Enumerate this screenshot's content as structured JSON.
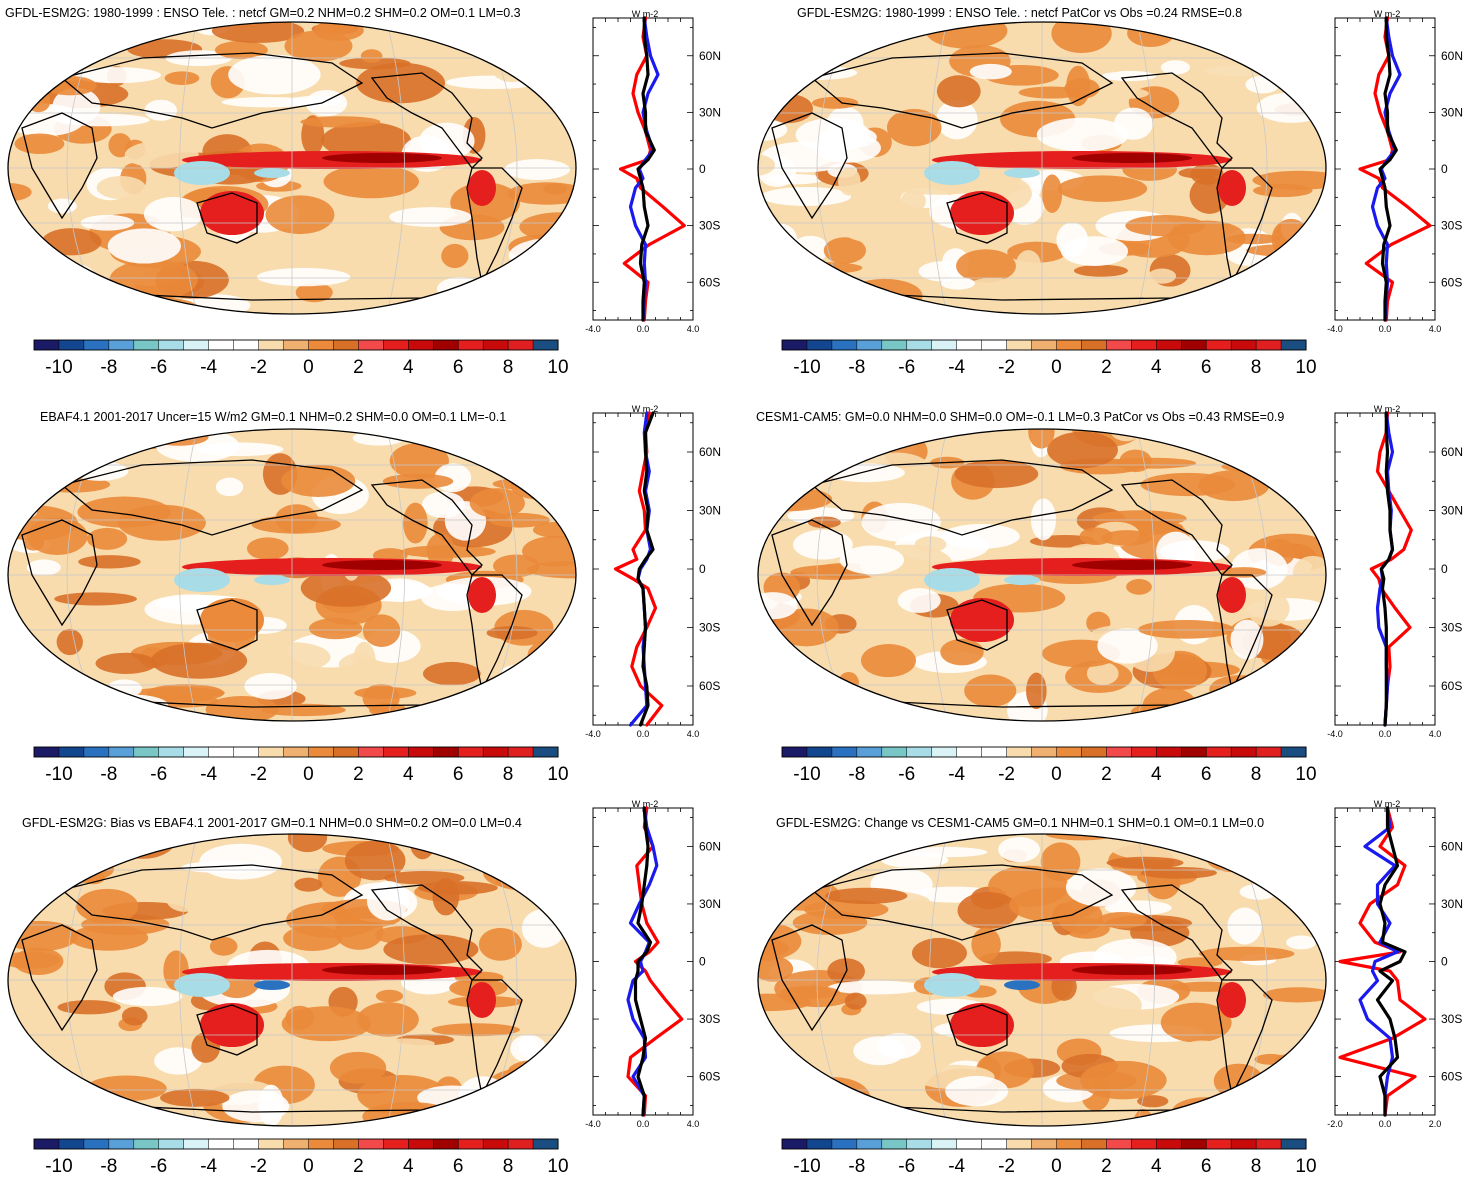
{
  "colorbar": {
    "labels": [
      "-10",
      "-8",
      "-6",
      "-4",
      "-2",
      "0",
      "2",
      "4",
      "6",
      "8",
      "10"
    ],
    "colors": [
      "#1a1a66",
      "#12468f",
      "#2a72c0",
      "#5aa0d8",
      "#78c6c6",
      "#a8dce6",
      "#d8f2f6",
      "#ffffff",
      "#ffffff",
      "#f8dcae",
      "#f0b070",
      "#ea8a3a",
      "#d87028",
      "#f24a4a",
      "#e51e1e",
      "#c80a0a",
      "#a00000",
      "#e51e1e",
      "#c80a0a",
      "#e02020",
      "#1a4d80"
    ]
  },
  "palette": {
    "ocean_bg": "#ffffff",
    "light_orange": "#f8dcae",
    "orange": "#ea8a3a",
    "dark_orange": "#d87028",
    "red": "#e51e1e",
    "dark_red": "#a00000",
    "light_blue": "#a8dce6",
    "blue": "#2a72c0",
    "profile_red": "#ff0000",
    "profile_blue": "#1a1aee",
    "profile_black": "#000000"
  },
  "profile_axis": {
    "unit": "W m-2",
    "lat_ticks": [
      "60N",
      "30N",
      "0",
      "30S",
      "60S"
    ]
  },
  "panels": [
    {
      "title": "GFDL-ESM2G: 1980-1999 : ENSO Tele. : netcf GM=0.2 NHM=0.2 SHM=0.2 OM=0.1 LM=0.3",
      "x_ticks": [
        "-4.0",
        "0.0",
        "4.0"
      ]
    },
    {
      "title": "GFDL-ESM2G: 1980-1999 : ENSO Tele. : netcf PatCor vs Obs =0.24 RMSE=0.8",
      "x_ticks": [
        "-4.0",
        "0.0",
        "4.0"
      ]
    },
    {
      "title": "EBAF4.1 2001-2017 Uncer=15 W/m2 GM=0.1 NHM=0.2 SHM=0.0 OM=0.1 LM=-0.1",
      "x_ticks": [
        "-4.0",
        "0.0",
        "4.0"
      ]
    },
    {
      "title": "CESM1-CAM5: GM=0.0 NHM=0.0 SHM=0.0 OM=-0.1 LM=0.3 PatCor vs Obs =0.43 RMSE=0.9",
      "x_ticks": [
        "-4.0",
        "0.0",
        "4.0"
      ]
    },
    {
      "title": "GFDL-ESM2G: Bias vs EBAF4.1 2001-2017 GM=0.1 NHM=0.0 SHM=0.2 OM=0.0 LM=0.4",
      "x_ticks": [
        "-4.0",
        "0.0",
        "4.0"
      ]
    },
    {
      "title": "GFDL-ESM2G: Change vs CESM1-CAM5 GM=0.1 NHM=0.1 SHM=0.1 OM=0.1 LM=0.0",
      "x_ticks": [
        "-2.0",
        "0.0",
        "2.0"
      ]
    }
  ],
  "chart_data": [
    {
      "type": "heatmap",
      "title": "GFDL-ESM2G: 1980-1999 : ENSO Tele. : netcf GM=0.2 NHM=0.2 SHM=0.2 OM=0.1 LM=0.3",
      "colorbar_range": [
        -10,
        10
      ],
      "profile": {
        "type": "line",
        "x_range": [
          -4,
          4
        ],
        "lat_ticks": [
          "60N",
          "30N",
          "0",
          "30S",
          "60S"
        ],
        "lat": [
          80,
          70,
          60,
          50,
          40,
          30,
          20,
          10,
          5,
          0,
          -5,
          -10,
          -20,
          -30,
          -40,
          -50,
          -60,
          -70,
          -80
        ],
        "series": [
          {
            "values": [
              0.2,
              0.0,
              0.3,
              -0.5,
              -0.8,
              -0.4,
              0.2,
              0.6,
              0.4,
              -1.8,
              -0.5,
              -0.2,
              1.6,
              3.3,
              0.5,
              -1.5,
              0.4,
              0.2,
              0.1
            ]
          },
          {
            "values": [
              0.1,
              0.3,
              0.6,
              1.2,
              0.4,
              0.0,
              0.3,
              0.8,
              0.2,
              -0.3,
              0.0,
              -0.6,
              -1.0,
              -0.6,
              0.2,
              0.1,
              0.2,
              0.1,
              0.0
            ]
          },
          {
            "values": [
              0.1,
              0.1,
              0.3,
              0.4,
              0.0,
              0.2,
              0.2,
              0.9,
              0.4,
              -0.4,
              -0.2,
              0.0,
              0.1,
              0.4,
              -0.1,
              -0.2,
              0.1,
              0.0,
              0.0
            ]
          }
        ]
      }
    },
    {
      "type": "heatmap",
      "title": "GFDL-ESM2G: 1980-1999 : ENSO Tele. : netcf PatCor vs Obs =0.24 RMSE=0.8",
      "colorbar_range": [
        -10,
        10
      ],
      "profile": {
        "type": "line",
        "x_range": [
          -4,
          4
        ],
        "lat_ticks": [
          "60N",
          "30N",
          "0",
          "30S",
          "60S"
        ],
        "lat": [
          80,
          70,
          60,
          50,
          40,
          30,
          20,
          10,
          5,
          0,
          -5,
          -10,
          -20,
          -30,
          -40,
          -50,
          -60,
          -70,
          -80
        ],
        "series": [
          {
            "values": [
              0.2,
              0.0,
              0.3,
              -0.5,
              -0.8,
              -0.4,
              0.2,
              0.6,
              0.4,
              -2.0,
              -0.5,
              -0.2,
              1.8,
              3.6,
              0.5,
              -1.5,
              0.6,
              0.2,
              0.1
            ]
          },
          {
            "values": [
              0.1,
              0.3,
              0.6,
              1.2,
              0.4,
              0.0,
              0.3,
              0.8,
              0.2,
              -0.3,
              0.0,
              -0.6,
              -1.0,
              -0.6,
              0.2,
              0.1,
              0.2,
              0.1,
              0.0
            ]
          },
          {
            "values": [
              0.1,
              0.1,
              0.3,
              0.4,
              0.0,
              0.2,
              0.2,
              0.9,
              0.4,
              -0.4,
              -0.2,
              0.0,
              0.1,
              0.4,
              -0.1,
              -0.2,
              0.1,
              0.0,
              0.0
            ]
          }
        ]
      }
    },
    {
      "type": "heatmap",
      "title": "EBAF4.1 2001-2017 Uncer=15 W/m2 GM=0.1 NHM=0.2 SHM=0.0 OM=0.1 LM=-0.1",
      "colorbar_range": [
        -10,
        10
      ],
      "profile": {
        "type": "line",
        "x_range": [
          -4,
          4
        ],
        "lat_ticks": [
          "60N",
          "30N",
          "0",
          "30S",
          "60S"
        ],
        "lat": [
          80,
          70,
          60,
          50,
          40,
          30,
          20,
          10,
          5,
          0,
          -5,
          -10,
          -20,
          -30,
          -40,
          -50,
          -60,
          -70,
          -80
        ],
        "series": [
          {
            "values": [
              0.5,
              0.2,
              0.3,
              0.0,
              -0.3,
              0.1,
              0.2,
              -0.8,
              -0.5,
              -2.2,
              -0.8,
              0.4,
              1.0,
              0.3,
              -0.5,
              -0.9,
              -0.2,
              1.5,
              0.3
            ]
          },
          {
            "values": [
              0.3,
              0.1,
              0.2,
              0.5,
              0.2,
              0.5,
              0.3,
              0.6,
              0.3,
              -0.2,
              -0.4,
              0.0,
              0.1,
              0.2,
              0.0,
              0.1,
              0.2,
              0.3,
              -1.0
            ]
          },
          {
            "values": [
              0.8,
              0.2,
              0.2,
              0.3,
              0.1,
              0.4,
              0.3,
              0.8,
              0.2,
              -0.3,
              -0.4,
              0.0,
              0.1,
              0.2,
              0.1,
              0.0,
              0.3,
              0.4,
              -0.2
            ]
          }
        ]
      }
    },
    {
      "type": "heatmap",
      "title": "CESM1-CAM5: GM=0.0 NHM=0.0 SHM=0.0 OM=-0.1 LM=0.3 PatCor vs Obs =0.43 RMSE=0.9",
      "colorbar_range": [
        -10,
        10
      ],
      "profile": {
        "type": "line",
        "x_range": [
          -4,
          4
        ],
        "lat_ticks": [
          "60N",
          "30N",
          "0",
          "30S",
          "60S"
        ],
        "lat": [
          80,
          70,
          60,
          50,
          40,
          30,
          20,
          10,
          5,
          0,
          -5,
          -10,
          -20,
          -30,
          -40,
          -50,
          -60,
          -70,
          -80
        ],
        "series": [
          {
            "values": [
              0.2,
              0.1,
              -0.4,
              -0.6,
              0.3,
              1.2,
              2.1,
              1.5,
              0.5,
              -1.1,
              -0.5,
              -0.3,
              0.8,
              2.0,
              0.3,
              0.4,
              0.2,
              0.1,
              0.0
            ]
          },
          {
            "values": [
              0.1,
              0.3,
              0.6,
              0.2,
              0.3,
              0.5,
              0.4,
              0.6,
              0.3,
              -0.3,
              -0.2,
              -0.4,
              -0.6,
              -0.5,
              0.1,
              0.1,
              0.2,
              0.1,
              0.0
            ]
          },
          {
            "values": [
              0.1,
              0.1,
              0.2,
              0.1,
              0.2,
              0.4,
              0.4,
              0.6,
              0.3,
              -0.3,
              -0.1,
              -0.2,
              0.0,
              0.1,
              0.1,
              0.1,
              0.1,
              0.1,
              0.0
            ]
          }
        ]
      }
    },
    {
      "type": "heatmap",
      "title": "GFDL-ESM2G: Bias vs EBAF4.1 2001-2017 GM=0.1 NHM=0.0 SHM=0.2 OM=0.0 LM=0.4",
      "colorbar_range": [
        -10,
        10
      ],
      "profile": {
        "type": "line",
        "x_range": [
          -4,
          4
        ],
        "lat_ticks": [
          "60N",
          "30N",
          "0",
          "30S",
          "60S"
        ],
        "lat": [
          80,
          70,
          60,
          50,
          40,
          30,
          20,
          10,
          5,
          0,
          -5,
          -10,
          -20,
          -30,
          -40,
          -50,
          -60,
          -70,
          -80
        ],
        "series": [
          {
            "values": [
              0.3,
              0.1,
              0.8,
              -0.5,
              -0.3,
              -0.1,
              0.3,
              1.2,
              0.5,
              -0.6,
              0.2,
              0.6,
              1.8,
              3.1,
              1.0,
              -1.0,
              -1.2,
              0.2,
              0.1
            ]
          },
          {
            "values": [
              0.1,
              0.3,
              0.8,
              1.1,
              0.5,
              -0.3,
              -1.0,
              0.5,
              0.2,
              -0.2,
              0.0,
              -0.8,
              -1.2,
              -0.8,
              0.1,
              0.2,
              -0.8,
              0.1,
              0.0
            ]
          },
          {
            "values": [
              0.1,
              0.2,
              0.4,
              0.3,
              0.1,
              -0.1,
              -0.4,
              0.6,
              0.3,
              -0.4,
              -0.4,
              -0.6,
              -0.6,
              -0.2,
              0.2,
              0.0,
              -0.4,
              0.1,
              0.0
            ]
          }
        ]
      }
    },
    {
      "type": "heatmap",
      "title": "GFDL-ESM2G: Change vs CESM1-CAM5 GM=0.1 NHM=0.1 SHM=0.1 OM=0.1 LM=0.0",
      "colorbar_range": [
        -10,
        10
      ],
      "profile": {
        "type": "line",
        "x_range": [
          -2,
          2
        ],
        "lat_ticks": [
          "60N",
          "30N",
          "0",
          "30S",
          "60S"
        ],
        "lat": [
          80,
          70,
          60,
          50,
          40,
          30,
          20,
          10,
          5,
          0,
          -5,
          -10,
          -20,
          -30,
          -40,
          -50,
          -60,
          -70,
          -80
        ],
        "series": [
          {
            "values": [
              0.1,
              0.3,
              -0.2,
              0.8,
              0.5,
              -0.6,
              -1.0,
              -0.4,
              0.6,
              -1.8,
              0.2,
              0.5,
              0.6,
              1.6,
              0.3,
              -1.8,
              1.2,
              0.1,
              0.0
            ]
          },
          {
            "values": [
              0.1,
              0.2,
              -0.8,
              0.4,
              -0.3,
              -0.3,
              0.2,
              -0.2,
              0.5,
              -0.4,
              -0.5,
              -0.3,
              -1.0,
              -0.7,
              0.2,
              0.3,
              0.1,
              0.0,
              0.0
            ]
          },
          {
            "values": [
              0.1,
              0.1,
              0.3,
              0.5,
              0.0,
              -0.2,
              0.0,
              -0.1,
              0.8,
              0.6,
              -0.2,
              0.3,
              -0.3,
              0.2,
              0.4,
              0.5,
              -0.2,
              0.0,
              0.0
            ]
          }
        ]
      }
    }
  ]
}
